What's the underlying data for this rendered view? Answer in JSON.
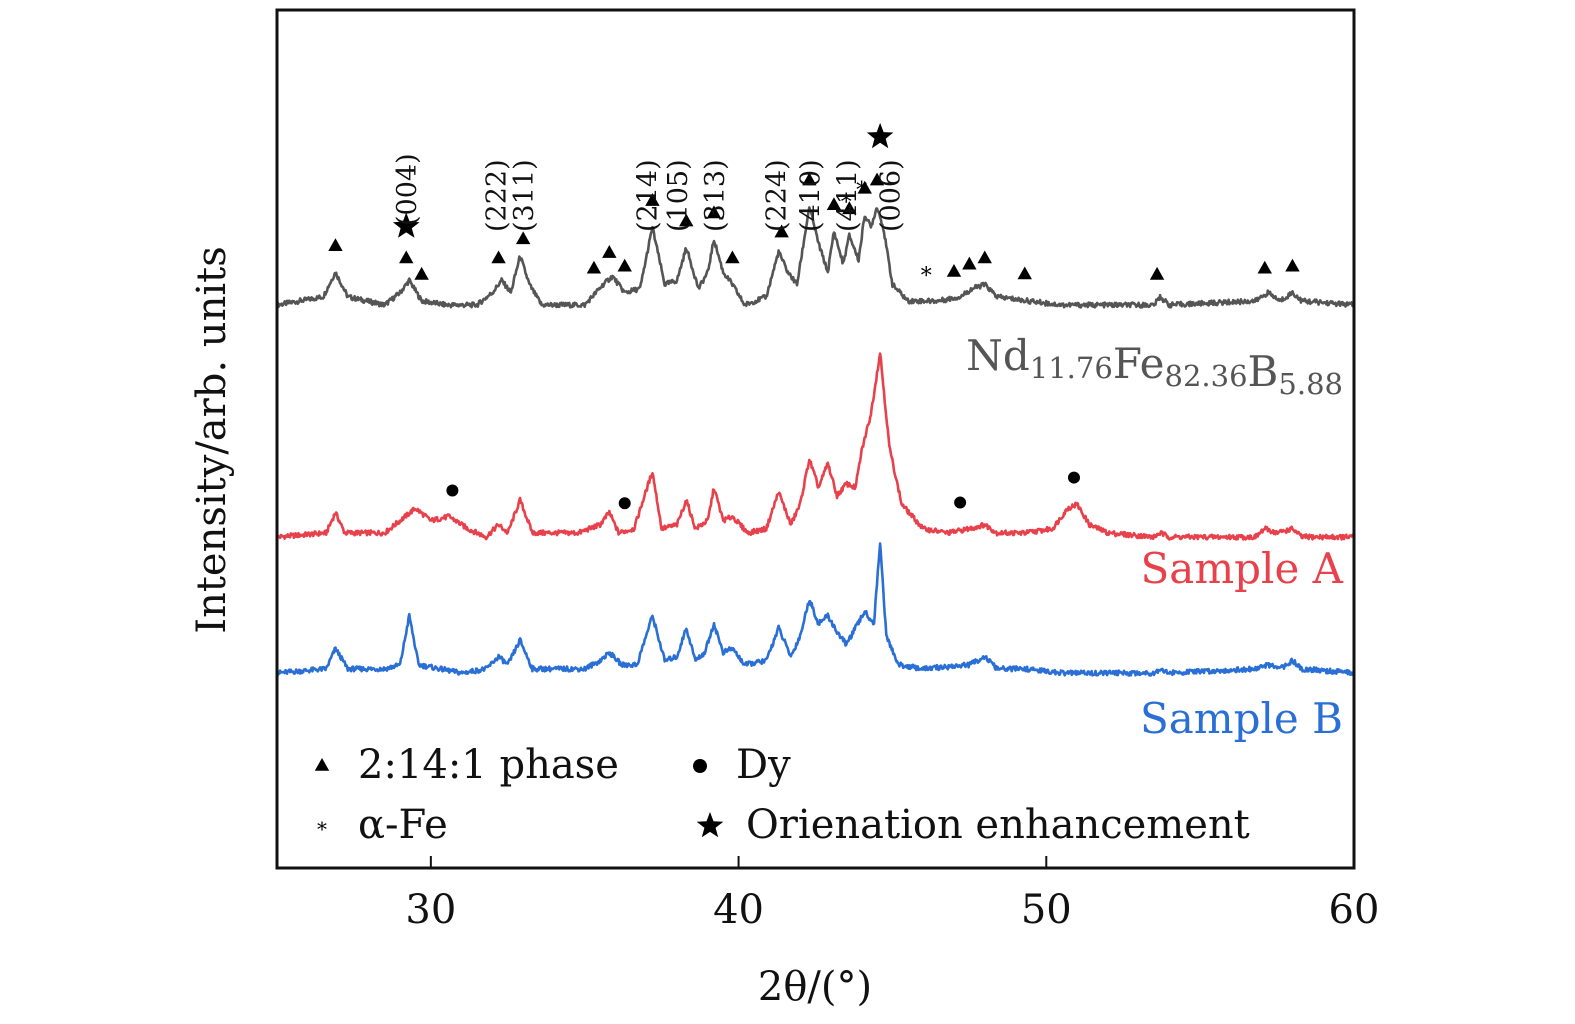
{
  "chart_data": {
    "type": "line",
    "xlabel": "2θ/(°)",
    "ylabel": "Intensity/arb. units",
    "xlim": [
      25,
      60
    ],
    "xticks": [
      30,
      40,
      50,
      60
    ],
    "grid": false,
    "series": [
      {
        "name": "Nd11.76Fe82.36B5.88",
        "label_main": [
          "Nd",
          "Fe",
          "B"
        ],
        "label_sub": [
          "11.76",
          "82.36",
          "5.88"
        ],
        "color": "#555555",
        "baseline": 1.0,
        "points": [
          [
            25.0,
            1.0
          ],
          [
            26.5,
            1.02
          ],
          [
            26.9,
            1.08
          ],
          [
            27.3,
            1.02
          ],
          [
            28.5,
            1.0
          ],
          [
            29.0,
            1.03
          ],
          [
            29.3,
            1.06
          ],
          [
            29.7,
            1.01
          ],
          [
            30.5,
            1.0
          ],
          [
            31.5,
            1.0
          ],
          [
            32.0,
            1.03
          ],
          [
            32.3,
            1.06
          ],
          [
            32.6,
            1.03
          ],
          [
            32.9,
            1.12
          ],
          [
            33.2,
            1.05
          ],
          [
            33.6,
            1.0
          ],
          [
            35.0,
            1.0
          ],
          [
            35.6,
            1.05
          ],
          [
            35.9,
            1.07
          ],
          [
            36.3,
            1.03
          ],
          [
            36.8,
            1.04
          ],
          [
            37.2,
            1.19
          ],
          [
            37.6,
            1.05
          ],
          [
            38.0,
            1.06
          ],
          [
            38.3,
            1.14
          ],
          [
            38.7,
            1.04
          ],
          [
            39.0,
            1.08
          ],
          [
            39.2,
            1.16
          ],
          [
            39.5,
            1.08
          ],
          [
            39.8,
            1.05
          ],
          [
            40.2,
            1.0
          ],
          [
            40.9,
            1.02
          ],
          [
            41.3,
            1.13
          ],
          [
            41.6,
            1.08
          ],
          [
            41.9,
            1.05
          ],
          [
            42.3,
            1.24
          ],
          [
            42.6,
            1.15
          ],
          [
            42.9,
            1.08
          ],
          [
            43.1,
            1.18
          ],
          [
            43.4,
            1.1
          ],
          [
            43.6,
            1.17
          ],
          [
            43.9,
            1.11
          ],
          [
            44.1,
            1.22
          ],
          [
            44.3,
            1.19
          ],
          [
            44.5,
            1.24
          ],
          [
            44.7,
            1.19
          ],
          [
            45.0,
            1.05
          ],
          [
            45.5,
            1.01
          ],
          [
            46.5,
            1.01
          ],
          [
            47.2,
            1.02
          ],
          [
            47.6,
            1.04
          ],
          [
            48.0,
            1.05
          ],
          [
            48.4,
            1.02
          ],
          [
            49.4,
            1.01
          ],
          [
            50.5,
            1.0
          ],
          [
            53.5,
            1.0
          ],
          [
            53.7,
            1.02
          ],
          [
            54.0,
            1.0
          ],
          [
            56.8,
            1.01
          ],
          [
            57.2,
            1.03
          ],
          [
            57.6,
            1.01
          ],
          [
            58.0,
            1.03
          ],
          [
            58.3,
            1.01
          ],
          [
            60.0,
            1.0
          ]
        ]
      },
      {
        "name": "Sample A",
        "color": "#e8414b",
        "baseline": 0.5,
        "points": [
          [
            25.0,
            0.5
          ],
          [
            26.6,
            0.51
          ],
          [
            26.9,
            0.56
          ],
          [
            27.2,
            0.51
          ],
          [
            28.5,
            0.51
          ],
          [
            29.0,
            0.54
          ],
          [
            29.5,
            0.57
          ],
          [
            30.0,
            0.54
          ],
          [
            30.6,
            0.55
          ],
          [
            31.2,
            0.52
          ],
          [
            31.8,
            0.5
          ],
          [
            32.2,
            0.53
          ],
          [
            32.5,
            0.51
          ],
          [
            32.9,
            0.59
          ],
          [
            33.3,
            0.51
          ],
          [
            34.8,
            0.51
          ],
          [
            35.5,
            0.53
          ],
          [
            35.8,
            0.56
          ],
          [
            36.1,
            0.51
          ],
          [
            36.6,
            0.52
          ],
          [
            37.2,
            0.66
          ],
          [
            37.5,
            0.52
          ],
          [
            38.0,
            0.53
          ],
          [
            38.3,
            0.59
          ],
          [
            38.6,
            0.52
          ],
          [
            39.0,
            0.54
          ],
          [
            39.2,
            0.62
          ],
          [
            39.5,
            0.54
          ],
          [
            39.8,
            0.55
          ],
          [
            40.3,
            0.51
          ],
          [
            40.9,
            0.52
          ],
          [
            41.3,
            0.61
          ],
          [
            41.7,
            0.53
          ],
          [
            42.0,
            0.58
          ],
          [
            42.3,
            0.69
          ],
          [
            42.6,
            0.62
          ],
          [
            42.9,
            0.68
          ],
          [
            43.2,
            0.6
          ],
          [
            43.5,
            0.63
          ],
          [
            43.8,
            0.62
          ],
          [
            44.0,
            0.71
          ],
          [
            44.3,
            0.8
          ],
          [
            44.6,
            0.95
          ],
          [
            44.9,
            0.72
          ],
          [
            45.3,
            0.58
          ],
          [
            46.0,
            0.52
          ],
          [
            46.8,
            0.51
          ],
          [
            47.5,
            0.52
          ],
          [
            48.0,
            0.53
          ],
          [
            48.4,
            0.51
          ],
          [
            49.3,
            0.51
          ],
          [
            50.2,
            0.52
          ],
          [
            50.7,
            0.57
          ],
          [
            51.0,
            0.58
          ],
          [
            51.4,
            0.53
          ],
          [
            52.0,
            0.51
          ],
          [
            53.5,
            0.5
          ],
          [
            53.7,
            0.51
          ],
          [
            54.0,
            0.5
          ],
          [
            56.8,
            0.5
          ],
          [
            57.1,
            0.52
          ],
          [
            57.5,
            0.51
          ],
          [
            58.0,
            0.52
          ],
          [
            58.3,
            0.5
          ],
          [
            60.0,
            0.5
          ]
        ]
      },
      {
        "name": "Sample B",
        "color": "#2a6fd6",
        "baseline": 0.0,
        "points": [
          [
            25.0,
            0.0
          ],
          [
            26.6,
            0.01
          ],
          [
            26.9,
            0.06
          ],
          [
            27.3,
            0.01
          ],
          [
            28.5,
            0.01
          ],
          [
            29.0,
            0.02
          ],
          [
            29.3,
            0.14
          ],
          [
            29.6,
            0.02
          ],
          [
            31.0,
            0.0
          ],
          [
            31.8,
            0.01
          ],
          [
            32.2,
            0.04
          ],
          [
            32.5,
            0.02
          ],
          [
            32.9,
            0.08
          ],
          [
            33.3,
            0.01
          ],
          [
            35.0,
            0.01
          ],
          [
            35.5,
            0.03
          ],
          [
            35.8,
            0.05
          ],
          [
            36.2,
            0.02
          ],
          [
            36.7,
            0.02
          ],
          [
            37.2,
            0.14
          ],
          [
            37.6,
            0.03
          ],
          [
            38.0,
            0.04
          ],
          [
            38.3,
            0.11
          ],
          [
            38.6,
            0.03
          ],
          [
            38.9,
            0.05
          ],
          [
            39.2,
            0.12
          ],
          [
            39.5,
            0.05
          ],
          [
            39.8,
            0.06
          ],
          [
            40.2,
            0.02
          ],
          [
            40.9,
            0.03
          ],
          [
            41.3,
            0.11
          ],
          [
            41.7,
            0.04
          ],
          [
            42.0,
            0.09
          ],
          [
            42.3,
            0.18
          ],
          [
            42.6,
            0.12
          ],
          [
            42.9,
            0.14
          ],
          [
            43.2,
            0.1
          ],
          [
            43.5,
            0.07
          ],
          [
            43.8,
            0.11
          ],
          [
            44.1,
            0.15
          ],
          [
            44.4,
            0.12
          ],
          [
            44.6,
            0.32
          ],
          [
            44.8,
            0.09
          ],
          [
            45.2,
            0.02
          ],
          [
            46.0,
            0.01
          ],
          [
            47.5,
            0.02
          ],
          [
            48.0,
            0.04
          ],
          [
            48.4,
            0.01
          ],
          [
            49.3,
            0.01
          ],
          [
            50.5,
            0.0
          ],
          [
            53.5,
            0.0
          ],
          [
            53.7,
            0.01
          ],
          [
            54.0,
            0.0
          ],
          [
            56.8,
            0.01
          ],
          [
            57.2,
            0.02
          ],
          [
            57.6,
            0.01
          ],
          [
            58.0,
            0.03
          ],
          [
            58.3,
            0.01
          ],
          [
            60.0,
            0.0
          ]
        ]
      }
    ],
    "phase_markers": {
      "triangle": [
        26.9,
        29.2,
        29.7,
        32.2,
        33.0,
        35.3,
        35.8,
        36.3,
        37.2,
        38.3,
        39.2,
        39.8,
        41.4,
        42.3,
        43.1,
        43.6,
        44.1,
        44.5,
        47.0,
        47.5,
        48.0,
        49.3,
        53.6,
        57.1,
        58.0
      ],
      "asterisk": [
        43.5,
        44.0,
        46.1
      ],
      "star": [
        29.2,
        44.6
      ],
      "dot": [
        30.7,
        36.3,
        47.2,
        50.9
      ]
    },
    "miller_indices": [
      {
        "label": "(004)",
        "x": 29.2
      },
      {
        "label": "(222)",
        "x": 32.1
      },
      {
        "label": "(311)",
        "x": 33.0
      },
      {
        "label": "(214)",
        "x": 37.0
      },
      {
        "label": "(105)",
        "x": 38.0
      },
      {
        "label": "(313)",
        "x": 39.2
      },
      {
        "label": "(224)",
        "x": 41.2
      },
      {
        "label": "(410)",
        "x": 42.3
      },
      {
        "label": "(411)",
        "x": 43.5
      },
      {
        "label": "(006)",
        "x": 44.9
      }
    ],
    "legend": {
      "position": "bottom-left",
      "items": [
        {
          "symbol": "triangle",
          "label": "2:14:1 phase"
        },
        {
          "symbol": "dot",
          "label": "Dy"
        },
        {
          "symbol": "asterisk",
          "label": "α-Fe"
        },
        {
          "symbol": "star",
          "label": "Orienation enhancement"
        }
      ]
    }
  }
}
